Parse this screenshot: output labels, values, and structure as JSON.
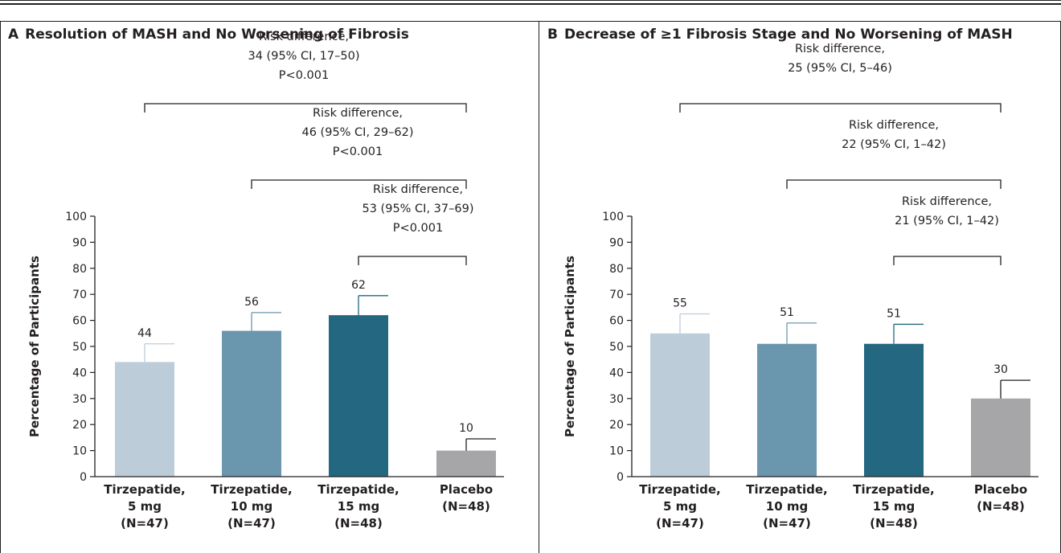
{
  "chart_data": [
    {
      "panel": "A",
      "type": "bar",
      "title": "Resolution of MASH and No Worsening of Fibrosis",
      "ylabel": "Percentage of Participants",
      "xlabel": "",
      "ylim": [
        0,
        100
      ],
      "yticks": [
        "0",
        "10",
        "20",
        "30",
        "40",
        "50",
        "60",
        "70",
        "80",
        "90",
        "100"
      ],
      "categories": [
        [
          "Tirzepatide,",
          "5 mg",
          "(N=47)"
        ],
        [
          "Tirzepatide,",
          "10 mg",
          "(N=47)"
        ],
        [
          "Tirzepatide,",
          "15 mg",
          "(N=48)"
        ],
        [
          "Placebo",
          "(N=48)"
        ]
      ],
      "values": [
        44,
        56,
        62,
        10
      ],
      "value_labels": [
        "44",
        "56",
        "62",
        "10"
      ],
      "error_upper": [
        51,
        63,
        69.5,
        14.5
      ],
      "colors": [
        "#bccdd9",
        "#6a97ad",
        "#236781",
        "#a6a6a9"
      ],
      "comparisons": [
        {
          "from": 0,
          "to": 3,
          "lines": [
            "Risk difference,",
            "34 (95% CI, 17–50)",
            "P<0.001"
          ]
        },
        {
          "from": 1,
          "to": 3,
          "lines": [
            "Risk difference,",
            "46 (95% CI, 29–62)",
            "P<0.001"
          ]
        },
        {
          "from": 2,
          "to": 3,
          "lines": [
            "Risk difference,",
            "53 (95% CI, 37–69)",
            "P<0.001"
          ]
        }
      ]
    },
    {
      "panel": "B",
      "type": "bar",
      "title": "Decrease of ≥1 Fibrosis Stage and No Worsening of MASH",
      "ylabel": "Percentage of Participants",
      "xlabel": "",
      "ylim": [
        0,
        100
      ],
      "yticks": [
        "0",
        "10",
        "20",
        "30",
        "40",
        "50",
        "60",
        "70",
        "80",
        "90",
        "100"
      ],
      "categories": [
        [
          "Tirzepatide,",
          "5 mg",
          "(N=47)"
        ],
        [
          "Tirzepatide,",
          "10 mg",
          "(N=47)"
        ],
        [
          "Tirzepatide,",
          "15 mg",
          "(N=48)"
        ],
        [
          "Placebo",
          "(N=48)"
        ]
      ],
      "values": [
        55,
        51,
        51,
        30
      ],
      "value_labels": [
        "55",
        "51",
        "51",
        "30"
      ],
      "error_upper": [
        62.5,
        59,
        58.5,
        37
      ],
      "colors": [
        "#bccdd9",
        "#6a97ad",
        "#236781",
        "#a6a6a9"
      ],
      "comparisons": [
        {
          "from": 0,
          "to": 3,
          "lines": [
            "Risk difference,",
            "25 (95% CI, 5–46)"
          ]
        },
        {
          "from": 1,
          "to": 3,
          "lines": [
            "Risk difference,",
            "22 (95% CI, 1–42)"
          ]
        },
        {
          "from": 2,
          "to": 3,
          "lines": [
            "Risk difference,",
            "21 (95% CI, 1–42)"
          ]
        }
      ]
    }
  ]
}
